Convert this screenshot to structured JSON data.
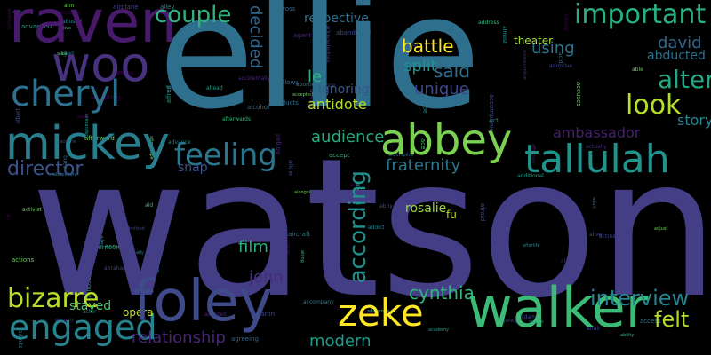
{
  "words": {
    "ellie": {
      "text": "ellie",
      "color": "#2e6f8e"
    },
    "watson": {
      "text": "watson",
      "color": "#433e85"
    },
    "raven": {
      "text": "raven",
      "color": "#481a6c"
    },
    "woo": {
      "text": "woo",
      "color": "#46327e"
    },
    "mickey": {
      "text": "mickey",
      "color": "#277f8e"
    },
    "cheryl": {
      "text": "cheryl",
      "color": "#2c728e"
    },
    "abbey": {
      "text": "abbey",
      "color": "#7ad151"
    },
    "tallulah": {
      "text": "tallulah",
      "color": "#1f948c"
    },
    "walker": {
      "text": "walker",
      "color": "#3bbb75"
    },
    "foley": {
      "text": "foley",
      "color": "#3e4a89"
    },
    "zeke": {
      "text": "zeke",
      "color": "#fde725"
    },
    "couple": {
      "text": "couple",
      "color": "#2db27d"
    },
    "important": {
      "text": "important",
      "color": "#2ab07f"
    },
    "decided": {
      "text": "decided",
      "color": "#31668e"
    },
    "alter": {
      "text": "alter",
      "color": "#23a983"
    },
    "look": {
      "text": "look",
      "color": "#b5de2b"
    },
    "feeling": {
      "text": "feeling",
      "color": "#2a768e"
    },
    "engaged": {
      "text": "engaged",
      "color": "#26828e"
    },
    "bizarre": {
      "text": "bizarre",
      "color": "#b8de29"
    },
    "interview": {
      "text": "interview",
      "color": "#25848e"
    },
    "according": {
      "text": "according",
      "color": "#21918c"
    },
    "audience": {
      "text": "audience",
      "color": "#25ac82"
    },
    "david": {
      "text": "david",
      "color": "#31678e"
    },
    "abducted": {
      "text": "abducted",
      "color": "#2d708e"
    },
    "story": {
      "text": "story",
      "color": "#26828e"
    },
    "ambassador": {
      "text": "ambassador",
      "color": "#481f70"
    },
    "battle": {
      "text": "battle",
      "color": "#fde725"
    },
    "split": {
      "text": "split",
      "color": "#21918c"
    },
    "said": {
      "text": "said",
      "color": "#2d708e"
    },
    "unique": {
      "text": "unique",
      "color": "#3f4889"
    },
    "antidote": {
      "text": "antidote",
      "color": "#b5de2b"
    },
    "fraternity": {
      "text": "fraternity",
      "color": "#2a788e"
    },
    "director": {
      "text": "director",
      "color": "#3b528b"
    },
    "relationship": {
      "text": "relationship",
      "color": "#482677"
    },
    "modern": {
      "text": "modern",
      "color": "#1f9a8a"
    },
    "cynthia": {
      "text": "cynthia",
      "color": "#31b57b"
    },
    "felt": {
      "text": "felt",
      "color": "#b5de2b"
    },
    "film": {
      "text": "film",
      "color": "#28ae80"
    },
    "john": {
      "text": "john",
      "color": "#472c7a"
    },
    "respective": {
      "text": "respective",
      "color": "#2d708e"
    },
    "using": {
      "text": "using",
      "color": "#2c738e"
    },
    "ignoring": {
      "text": "ignoring",
      "color": "#39558c"
    },
    "le": {
      "text": "le",
      "color": "#2db27d"
    },
    "snap": {
      "text": "snap",
      "color": "#3b528b"
    },
    "stayed": {
      "text": "stayed",
      "color": "#52c569"
    },
    "opera": {
      "text": "opera",
      "color": "#bddf26"
    },
    "theater": {
      "text": "theater",
      "color": "#a8db34"
    },
    "fu": {
      "text": "fu",
      "color": "#bddf26"
    },
    "rosalie": {
      "text": "rosalie",
      "color": "#9bd93c"
    }
  },
  "filler": [
    "abandoning",
    "abandoned",
    "abducts",
    "abduction",
    "abide",
    "ability",
    "able",
    "aboard",
    "abortion",
    "abraham",
    "abruptly",
    "absence",
    "abu",
    "abused",
    "academy",
    "accept",
    "accepted",
    "accepting",
    "access",
    "accident",
    "accidentally",
    "accompanies",
    "accomplice",
    "accompany",
    "account",
    "accused",
    "accuses",
    "accusing",
    "acid",
    "acknowledges",
    "acquaintance",
    "acquire",
    "across",
    "act",
    "actions",
    "active",
    "activist",
    "activity",
    "actor",
    "actress",
    "actually",
    "adam",
    "add",
    "addict",
    "additional",
    "address",
    "adjust",
    "admiral",
    "admits",
    "admitted",
    "adopted",
    "adoptive",
    "adult",
    "advance",
    "advanced",
    "adventure",
    "advantage",
    "advice",
    "advises",
    "affair",
    "affection",
    "afraid",
    "african",
    "afterlife",
    "afternoon",
    "afterwards",
    "afterward",
    "age",
    "aged",
    "agency",
    "agent",
    "agree",
    "agreeing",
    "agreement",
    "ahead",
    "aid",
    "aim",
    "air",
    "aircraft",
    "airplane",
    "alan",
    "albert",
    "alcohol",
    "alec",
    "alexander",
    "alerted",
    "alice",
    "alien",
    "align",
    "alive",
    "allison",
    "allow",
    "allows",
    "ally",
    "almost",
    "along",
    "alongside",
    "also",
    "amelie",
    "aaron",
    "abigail",
    "abby",
    "aang",
    "alley",
    "alfred",
    "ace",
    "actions",
    "activated",
    "activate",
    "adopt"
  ]
}
